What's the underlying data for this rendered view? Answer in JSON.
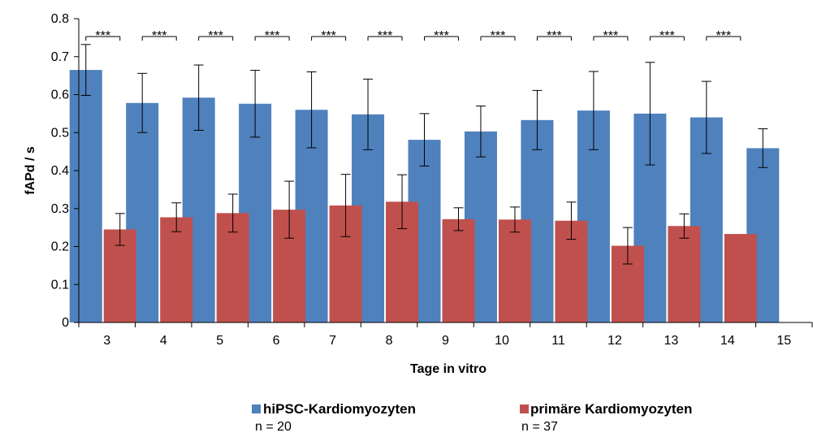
{
  "chart_data": {
    "type": "bar",
    "title": "",
    "xlabel": "Tage in vitro",
    "ylabel": "fAPd / s",
    "ylim": [
      0,
      0.8
    ],
    "yticks": [
      "0",
      "0.1",
      "0.2",
      "0.3",
      "0.4",
      "0.5",
      "0.6",
      "0.7",
      "0.8"
    ],
    "categories": [
      "3",
      "4",
      "5",
      "6",
      "7",
      "8",
      "9",
      "10",
      "11",
      "12",
      "13",
      "14",
      "15"
    ],
    "series": [
      {
        "name": "hiPSC-Kardiomyozyten",
        "n_label": "n = 20",
        "color": "#4f81bd",
        "values": [
          0.665,
          0.578,
          0.592,
          0.576,
          0.56,
          0.548,
          0.481,
          0.503,
          0.533,
          0.558,
          0.55,
          0.54,
          0.459
        ],
        "errors": [
          0.067,
          0.078,
          0.086,
          0.088,
          0.1,
          0.093,
          0.069,
          0.067,
          0.078,
          0.103,
          0.135,
          0.095,
          0.051
        ]
      },
      {
        "name": "primäre Kardiomyozyten",
        "n_label": "n = 37",
        "color": "#c0504d",
        "values": [
          0.245,
          0.277,
          0.288,
          0.297,
          0.308,
          0.318,
          0.272,
          0.271,
          0.268,
          0.202,
          0.254,
          0.233,
          null
        ],
        "errors": [
          0.042,
          0.038,
          0.05,
          0.075,
          0.082,
          0.071,
          0.03,
          0.033,
          0.049,
          0.048,
          0.032,
          null,
          null
        ]
      }
    ],
    "significance": [
      "***",
      "***",
      "***",
      "***",
      "***",
      "***",
      "***",
      "***",
      "***",
      "***",
      "***",
      "***",
      ""
    ],
    "legend_position": "bottom",
    "grid": false
  }
}
